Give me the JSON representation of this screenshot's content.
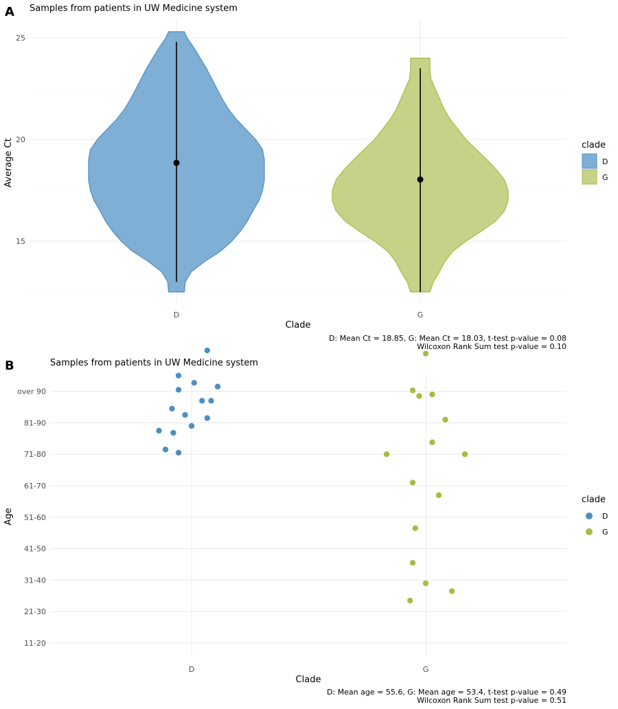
{
  "panels": [
    {
      "tag": "A",
      "title": "Samples from patients in UW Medicine system",
      "caption_lines": [
        "D: Mean Ct = 18.85, G: Mean Ct = 18.03,  t-test p-value = 0.08",
        "Wilcoxon Rank Sum test p-value = 0.10"
      ],
      "legend": {
        "title": "clade",
        "items": [
          {
            "label": "D",
            "color": "#4E8EC2"
          },
          {
            "label": "G",
            "color": "#A9BB44"
          }
        ]
      }
    },
    {
      "tag": "B",
      "title": "Samples from patients in UW Medicine system",
      "caption_lines": [
        "D: Mean age = 55.6, G: Mean age = 53.4,  t-test p-value = 0.49",
        "Wilcoxon Rank Sum test p-value = 0.51"
      ],
      "legend": {
        "title": "clade",
        "items": [
          {
            "label": "D",
            "color": "#4E8EC2"
          },
          {
            "label": "G",
            "color": "#A9BB44"
          }
        ]
      }
    }
  ],
  "chart_data": [
    {
      "type": "violin",
      "title": "Samples from patients in UW Medicine system",
      "xlabel": "Clade",
      "ylabel": "Average Ct",
      "categories": [
        "D",
        "G"
      ],
      "ylim": [
        12.3,
        25.8
      ],
      "yticks": [
        15,
        20,
        25
      ],
      "grid": true,
      "legend_position": "right",
      "series": [
        {
          "name": "D",
          "color": "#4E8EC2",
          "mean": 18.85,
          "range": [
            13.0,
            24.8
          ],
          "violin_extent": [
            12.5,
            25.3
          ],
          "density_halfwidth": [
            [
              12.5,
              0.09
            ],
            [
              13.0,
              0.1
            ],
            [
              13.5,
              0.17
            ],
            [
              14.0,
              0.32
            ],
            [
              14.5,
              0.5
            ],
            [
              15.0,
              0.63
            ],
            [
              15.5,
              0.73
            ],
            [
              16.0,
              0.81
            ],
            [
              16.5,
              0.87
            ],
            [
              17.0,
              0.94
            ],
            [
              17.5,
              0.98
            ],
            [
              18.0,
              1.0
            ],
            [
              18.5,
              1.0
            ],
            [
              19.0,
              1.0
            ],
            [
              19.5,
              0.98
            ],
            [
              20.0,
              0.9
            ],
            [
              20.5,
              0.79
            ],
            [
              21.0,
              0.68
            ],
            [
              21.5,
              0.59
            ],
            [
              22.0,
              0.52
            ],
            [
              22.5,
              0.46
            ],
            [
              23.0,
              0.4
            ],
            [
              23.5,
              0.34
            ],
            [
              24.0,
              0.27
            ],
            [
              24.5,
              0.2
            ],
            [
              25.0,
              0.12
            ],
            [
              25.3,
              0.09
            ]
          ]
        },
        {
          "name": "G",
          "color": "#A9BB44",
          "mean": 18.03,
          "range": [
            12.5,
            23.5
          ],
          "violin_extent": [
            12.5,
            24.0
          ],
          "density_halfwidth": [
            [
              12.5,
              0.11
            ],
            [
              13.0,
              0.15
            ],
            [
              13.5,
              0.22
            ],
            [
              14.0,
              0.28
            ],
            [
              14.5,
              0.37
            ],
            [
              15.0,
              0.52
            ],
            [
              15.5,
              0.7
            ],
            [
              16.0,
              0.86
            ],
            [
              16.5,
              0.96
            ],
            [
              17.0,
              1.0
            ],
            [
              17.5,
              1.0
            ],
            [
              18.0,
              0.96
            ],
            [
              18.5,
              0.87
            ],
            [
              19.0,
              0.76
            ],
            [
              19.5,
              0.64
            ],
            [
              20.0,
              0.52
            ],
            [
              20.5,
              0.43
            ],
            [
              21.0,
              0.34
            ],
            [
              21.5,
              0.27
            ],
            [
              22.0,
              0.22
            ],
            [
              22.5,
              0.17
            ],
            [
              23.0,
              0.12
            ],
            [
              23.5,
              0.11
            ],
            [
              24.0,
              0.11
            ]
          ]
        }
      ]
    },
    {
      "type": "scatter",
      "title": "Samples from patients in UW Medicine system",
      "xlabel": "Clade",
      "ylabel": "Age",
      "categories": [
        "D",
        "G"
      ],
      "yticks": [
        "11-20",
        "21-30",
        "31-40",
        "41-50",
        "51-60",
        "61-70",
        "71-80",
        "81-90",
        "over 90"
      ],
      "grid": true,
      "legend_position": "right",
      "series": [
        {
          "name": "D",
          "color": "#4E8EC2",
          "mean_age": 55.6,
          "points": [
            [
              0.12,
              9.3
            ],
            [
              -0.1,
              8.5
            ],
            [
              -0.1,
              8.05
            ],
            [
              0.08,
              7.7
            ],
            [
              0.15,
              7.7
            ],
            [
              0.0,
              6.9
            ],
            [
              -0.2,
              6.15
            ],
            [
              -0.1,
              6.05
            ],
            [
              -0.25,
              6.75
            ],
            [
              -0.14,
              6.68
            ],
            [
              -0.05,
              7.25
            ],
            [
              0.12,
              7.15
            ],
            [
              -0.15,
              7.45
            ],
            [
              0.02,
              8.27
            ],
            [
              0.2,
              8.15
            ]
          ]
        },
        {
          "name": "G",
          "color": "#A9BB44",
          "mean_age": 53.4,
          "points": [
            [
              0.0,
              9.2
            ],
            [
              -0.1,
              8.03
            ],
            [
              -0.05,
              7.85
            ],
            [
              0.05,
              7.9
            ],
            [
              0.15,
              7.1
            ],
            [
              0.05,
              6.38
            ],
            [
              0.3,
              6.0
            ],
            [
              -0.3,
              6.0
            ],
            [
              -0.1,
              5.1
            ],
            [
              0.1,
              4.7
            ],
            [
              -0.08,
              3.65
            ],
            [
              -0.1,
              2.55
            ],
            [
              0.0,
              1.9
            ],
            [
              -0.12,
              1.35
            ],
            [
              0.2,
              1.65
            ]
          ]
        }
      ]
    }
  ]
}
